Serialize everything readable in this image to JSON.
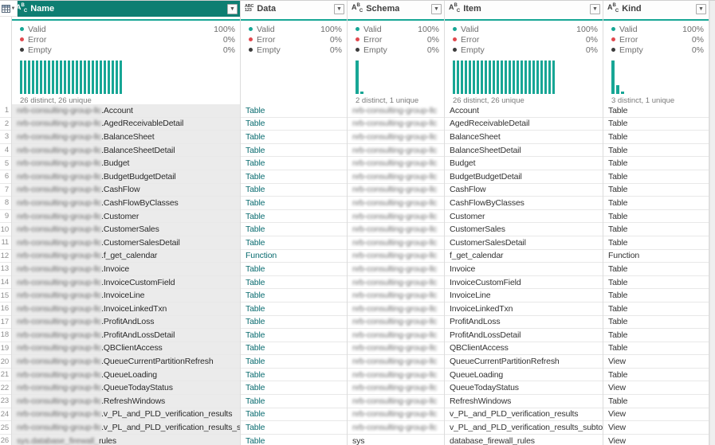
{
  "app": {
    "name": "Power Query data preview"
  },
  "theme": {
    "header_teal": "#0E7E72",
    "accent_teal": "#17A695",
    "error_red": "#E0484E",
    "empty_dark": "#3C3C3C",
    "link_teal": "#0A6C70",
    "name_column_bg": "#EBEBEB"
  },
  "corner": {
    "icon": "table-grid-icon",
    "dropdown_icon": "chevron-down-icon"
  },
  "quality_labels": {
    "valid": "Valid",
    "error": "Error",
    "empty": "Empty"
  },
  "columns": [
    {
      "key": "name",
      "label": "Name",
      "type_icon": "text-type-icon",
      "selected": true,
      "valid": "100%",
      "error": "0%",
      "empty": "0%",
      "bars": {
        "width": 3,
        "heights": [
          42,
          42,
          42,
          42,
          42,
          42,
          42,
          42,
          42,
          42,
          42,
          42,
          42,
          42,
          42,
          42,
          42,
          42,
          42,
          42,
          42,
          42,
          42,
          42,
          42,
          42
        ]
      },
      "caption": "26 distinct, 26 unique"
    },
    {
      "key": "data",
      "label": "Data",
      "type_icon": "any-type-icon",
      "selected": false,
      "valid": "100%",
      "error": "0%",
      "empty": "0%",
      "bars": null,
      "caption": ""
    },
    {
      "key": "schema",
      "label": "Schema",
      "type_icon": "text-type-icon",
      "selected": false,
      "valid": "100%",
      "error": "0%",
      "empty": "0%",
      "bars": {
        "width": 4,
        "heights": [
          42,
          3
        ]
      },
      "caption": "2 distinct, 1 unique"
    },
    {
      "key": "item",
      "label": "Item",
      "type_icon": "text-type-icon",
      "selected": false,
      "valid": "100%",
      "error": "0%",
      "empty": "0%",
      "bars": {
        "width": 3,
        "heights": [
          42,
          42,
          42,
          42,
          42,
          42,
          42,
          42,
          42,
          42,
          42,
          42,
          42,
          42,
          42,
          42,
          42,
          42,
          42,
          42,
          42,
          42,
          42,
          42,
          42,
          42
        ]
      },
      "caption": "26 distinct, 26 unique"
    },
    {
      "key": "kind",
      "label": "Kind",
      "type_icon": "text-type-icon",
      "selected": false,
      "valid": "100%",
      "error": "0%",
      "empty": "0%",
      "bars": {
        "width": 4,
        "heights": [
          42,
          11,
          3
        ]
      },
      "caption": "3 distinct, 1 unique"
    }
  ],
  "rows": [
    {
      "n": 1,
      "name_prefix": "nrb-consulting-group-llc",
      "name": ".Account",
      "data": "Table",
      "schema": "nrb-consulting-group-llc",
      "schema_blur": true,
      "item": "Account",
      "kind": "Table"
    },
    {
      "n": 2,
      "name_prefix": "nrb-consulting-group-llc",
      "name": ".AgedReceivableDetail",
      "data": "Table",
      "schema": "nrb-consulting-group-llc",
      "schema_blur": true,
      "item": "AgedReceivableDetail",
      "kind": "Table"
    },
    {
      "n": 3,
      "name_prefix": "nrb-consulting-group-llc",
      "name": ".BalanceSheet",
      "data": "Table",
      "schema": "nrb-consulting-group-llc",
      "schema_blur": true,
      "item": "BalanceSheet",
      "kind": "Table"
    },
    {
      "n": 4,
      "name_prefix": "nrb-consulting-group-llc",
      "name": ".BalanceSheetDetail",
      "data": "Table",
      "schema": "nrb-consulting-group-llc",
      "schema_blur": true,
      "item": "BalanceSheetDetail",
      "kind": "Table"
    },
    {
      "n": 5,
      "name_prefix": "nrb-consulting-group-llc",
      "name": ".Budget",
      "data": "Table",
      "schema": "nrb-consulting-group-llc",
      "schema_blur": true,
      "item": "Budget",
      "kind": "Table"
    },
    {
      "n": 6,
      "name_prefix": "nrb-consulting-group-llc",
      "name": ".BudgetBudgetDetail",
      "data": "Table",
      "schema": "nrb-consulting-group-llc",
      "schema_blur": true,
      "item": "BudgetBudgetDetail",
      "kind": "Table"
    },
    {
      "n": 7,
      "name_prefix": "nrb-consulting-group-llc",
      "name": ".CashFlow",
      "data": "Table",
      "schema": "nrb-consulting-group-llc",
      "schema_blur": true,
      "item": "CashFlow",
      "kind": "Table"
    },
    {
      "n": 8,
      "name_prefix": "nrb-consulting-group-llc",
      "name": ".CashFlowByClasses",
      "data": "Table",
      "schema": "nrb-consulting-group-llc",
      "schema_blur": true,
      "item": "CashFlowByClasses",
      "kind": "Table"
    },
    {
      "n": 9,
      "name_prefix": "nrb-consulting-group-llc",
      "name": ".Customer",
      "data": "Table",
      "schema": "nrb-consulting-group-llc",
      "schema_blur": true,
      "item": "Customer",
      "kind": "Table"
    },
    {
      "n": 10,
      "name_prefix": "nrb-consulting-group-llc",
      "name": ".CustomerSales",
      "data": "Table",
      "schema": "nrb-consulting-group-llc",
      "schema_blur": true,
      "item": "CustomerSales",
      "kind": "Table"
    },
    {
      "n": 11,
      "name_prefix": "nrb-consulting-group-llc",
      "name": ".CustomerSalesDetail",
      "data": "Table",
      "schema": "nrb-consulting-group-llc",
      "schema_blur": true,
      "item": "CustomerSalesDetail",
      "kind": "Table"
    },
    {
      "n": 12,
      "name_prefix": "nrb-consulting-group-llc",
      "name": ".f_get_calendar",
      "data": "Function",
      "schema": "nrb-consulting-group-llc",
      "schema_blur": true,
      "item": "f_get_calendar",
      "kind": "Function"
    },
    {
      "n": 13,
      "name_prefix": "nrb-consulting-group-llc",
      "name": ".Invoice",
      "data": "Table",
      "schema": "nrb-consulting-group-llc",
      "schema_blur": true,
      "item": "Invoice",
      "kind": "Table"
    },
    {
      "n": 14,
      "name_prefix": "nrb-consulting-group-llc",
      "name": ".InvoiceCustomField",
      "data": "Table",
      "schema": "nrb-consulting-group-llc",
      "schema_blur": true,
      "item": "InvoiceCustomField",
      "kind": "Table"
    },
    {
      "n": 15,
      "name_prefix": "nrb-consulting-group-llc",
      "name": ".InvoiceLine",
      "data": "Table",
      "schema": "nrb-consulting-group-llc",
      "schema_blur": true,
      "item": "InvoiceLine",
      "kind": "Table"
    },
    {
      "n": 16,
      "name_prefix": "nrb-consulting-group-llc",
      "name": ".InvoiceLinkedTxn",
      "data": "Table",
      "schema": "nrb-consulting-group-llc",
      "schema_blur": true,
      "item": "InvoiceLinkedTxn",
      "kind": "Table"
    },
    {
      "n": 17,
      "name_prefix": "nrb-consulting-group-llc",
      "name": ".ProfitAndLoss",
      "data": "Table",
      "schema": "nrb-consulting-group-llc",
      "schema_blur": true,
      "item": "ProfitAndLoss",
      "kind": "Table"
    },
    {
      "n": 18,
      "name_prefix": "nrb-consulting-group-llc",
      "name": ".ProfitAndLossDetail",
      "data": "Table",
      "schema": "nrb-consulting-group-llc",
      "schema_blur": true,
      "item": "ProfitAndLossDetail",
      "kind": "Table"
    },
    {
      "n": 19,
      "name_prefix": "nrb-consulting-group-llc",
      "name": ".QBClientAccess",
      "data": "Table",
      "schema": "nrb-consulting-group-llc",
      "schema_blur": true,
      "item": "QBClientAccess",
      "kind": "Table"
    },
    {
      "n": 20,
      "name_prefix": "nrb-consulting-group-llc",
      "name": ".QueueCurrentPartitionRefresh",
      "data": "Table",
      "schema": "nrb-consulting-group-llc",
      "schema_blur": true,
      "item": "QueueCurrentPartitionRefresh",
      "kind": "View"
    },
    {
      "n": 21,
      "name_prefix": "nrb-consulting-group-llc",
      "name": ".QueueLoading",
      "data": "Table",
      "schema": "nrb-consulting-group-llc",
      "schema_blur": true,
      "item": "QueueLoading",
      "kind": "Table"
    },
    {
      "n": 22,
      "name_prefix": "nrb-consulting-group-llc",
      "name": ".QueueTodayStatus",
      "data": "Table",
      "schema": "nrb-consulting-group-llc",
      "schema_blur": true,
      "item": "QueueTodayStatus",
      "kind": "View"
    },
    {
      "n": 23,
      "name_prefix": "nrb-consulting-group-llc",
      "name": ".RefreshWindows",
      "data": "Table",
      "schema": "nrb-consulting-group-llc",
      "schema_blur": true,
      "item": "RefreshWindows",
      "kind": "Table"
    },
    {
      "n": 24,
      "name_prefix": "nrb-consulting-group-llc",
      "name": ".v_PL_and_PLD_verification_results",
      "data": "Table",
      "schema": "nrb-consulting-group-llc",
      "schema_blur": true,
      "item": "v_PL_and_PLD_verification_results",
      "kind": "View"
    },
    {
      "n": 25,
      "name_prefix": "nrb-consulting-group-llc",
      "name": ".v_PL_and_PLD_verification_results_subtotals",
      "data": "Table",
      "schema": "nrb-consulting-group-llc",
      "schema_blur": true,
      "item": "v_PL_and_PLD_verification_results_subtotals",
      "kind": "View"
    },
    {
      "n": 26,
      "name_prefix": "sys.database_firewall_",
      "name": "rules",
      "data": "Table",
      "schema": "sys",
      "schema_blur": false,
      "item": "database_firewall_rules",
      "kind": "View"
    }
  ]
}
